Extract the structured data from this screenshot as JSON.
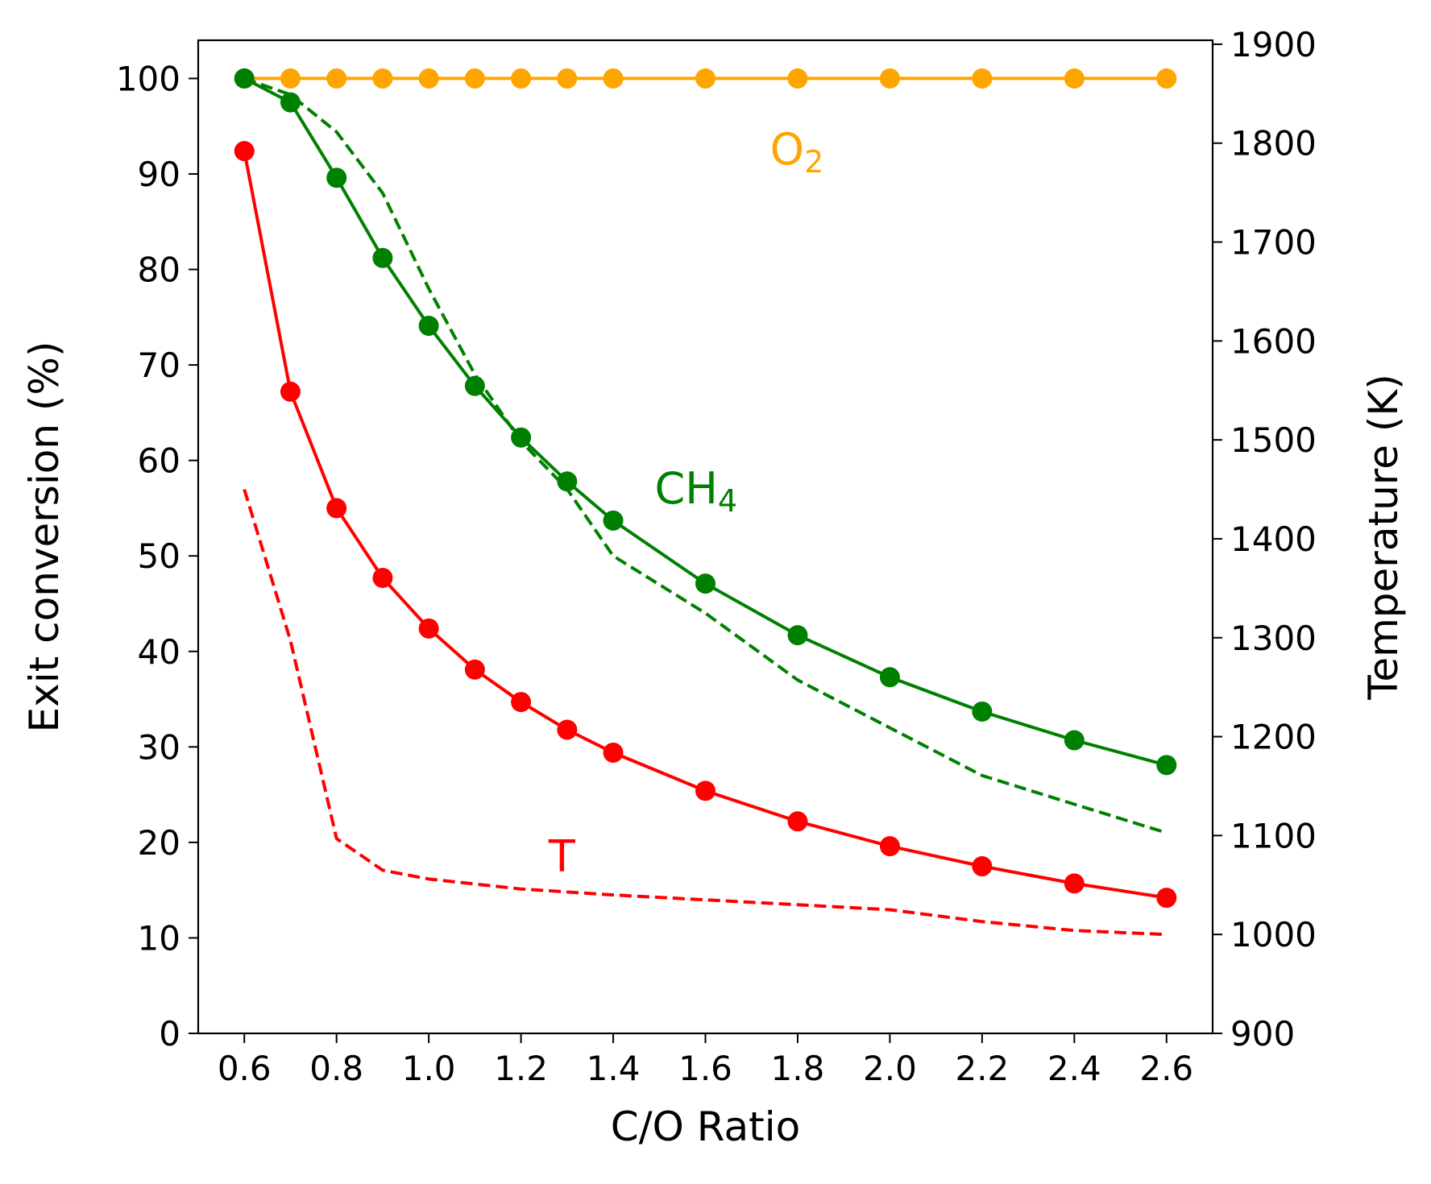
{
  "chart_data": {
    "type": "line",
    "xlabel": "C/O Ratio",
    "ylabel": "Exit conversion (%)",
    "y2label": "Temperature (K)",
    "xlim": [
      0.5,
      2.7
    ],
    "ylim": [
      0,
      104
    ],
    "y2lim": [
      900,
      1904
    ],
    "xticks": [
      "0.6",
      "0.8",
      "1.0",
      "1.2",
      "1.4",
      "1.6",
      "1.8",
      "2.0",
      "2.2",
      "2.4",
      "2.6"
    ],
    "yticks": [
      "0",
      "10",
      "20",
      "30",
      "40",
      "50",
      "60",
      "70",
      "80",
      "90",
      "100"
    ],
    "y2ticks": [
      "900",
      "1000",
      "1100",
      "1200",
      "1300",
      "1400",
      "1500",
      "1600",
      "1700",
      "1800",
      "1900"
    ],
    "grid": false,
    "legend": "none",
    "annotations": [
      {
        "id": "o2",
        "text": "O",
        "sub": "2",
        "x": 1.74,
        "y": 91.0,
        "color": "#ffa500"
      },
      {
        "id": "ch4",
        "text": "CH",
        "sub": "4",
        "x": 1.49,
        "y": 55.5,
        "color": "#008000"
      },
      {
        "id": "t",
        "text": "T",
        "sub": "",
        "x": 1.26,
        "y": 17.0,
        "color": "#ff0000"
      }
    ],
    "series": [
      {
        "name": "O2",
        "axis": "left",
        "style": "solid-markers",
        "color": "#ffa500",
        "x": [
          0.6,
          0.7,
          0.8,
          0.9,
          1.0,
          1.1,
          1.2,
          1.3,
          1.4,
          1.6,
          1.8,
          2.0,
          2.2,
          2.4,
          2.6
        ],
        "y": [
          100,
          100,
          100,
          100,
          100,
          100,
          100,
          100,
          100,
          100,
          100,
          100,
          100,
          100,
          100
        ]
      },
      {
        "name": "CH4",
        "axis": "left",
        "style": "solid-markers",
        "color": "#008000",
        "x": [
          0.6,
          0.7,
          0.8,
          0.9,
          1.0,
          1.1,
          1.2,
          1.3,
          1.4,
          1.6,
          1.8,
          2.0,
          2.2,
          2.4,
          2.6
        ],
        "y": [
          100,
          97.5,
          89.6,
          81.2,
          74.1,
          67.8,
          62.4,
          57.8,
          53.7,
          47.1,
          41.7,
          37.3,
          33.7,
          30.7,
          28.1
        ]
      },
      {
        "name": "CH4",
        "axis": "left",
        "style": "dashed",
        "color": "#008000",
        "x": [
          0.6,
          0.7,
          0.8,
          0.9,
          1.0,
          1.1,
          1.2,
          1.3,
          1.4,
          1.6,
          1.8,
          2.0,
          2.2,
          2.4,
          2.6
        ],
        "y": [
          100,
          98.3,
          94.4,
          88.0,
          78.0,
          69.0,
          62.0,
          57.0,
          50.0,
          44.0,
          37.0,
          32.0,
          27.0,
          24.0,
          21.0
        ]
      },
      {
        "name": "Conversion",
        "axis": "left",
        "style": "solid-markers",
        "color": "#ff0000",
        "x": [
          0.6,
          0.7,
          0.8,
          0.9,
          1.0,
          1.1,
          1.2,
          1.3,
          1.4,
          1.6,
          1.8,
          2.0,
          2.2,
          2.4,
          2.6
        ],
        "y": [
          92.4,
          67.2,
          55.0,
          47.7,
          42.4,
          38.1,
          34.7,
          31.8,
          29.4,
          25.4,
          22.2,
          19.6,
          17.5,
          15.7,
          14.2
        ]
      },
      {
        "name": "T",
        "axis": "right",
        "style": "dashed",
        "color": "#ff0000",
        "x": [
          0.6,
          0.7,
          0.8,
          0.9,
          1.0,
          1.2,
          1.4,
          1.6,
          1.8,
          2.0,
          2.2,
          2.4,
          2.6
        ],
        "y": [
          1450,
          1297,
          1097,
          1065,
          1056,
          1046,
          1040,
          1035,
          1030,
          1025,
          1013,
          1004,
          1000
        ]
      }
    ]
  }
}
